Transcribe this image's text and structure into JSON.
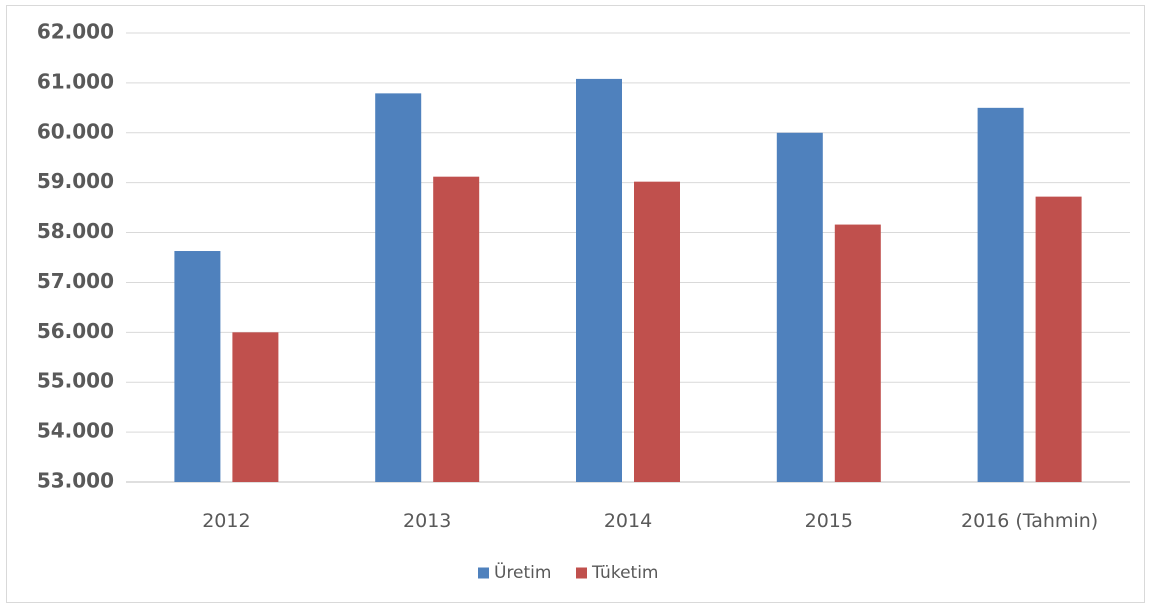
{
  "chart_data": {
    "type": "bar",
    "categories": [
      "2012",
      "2013",
      "2014",
      "2015",
      "2016 (Tahmin)"
    ],
    "series": [
      {
        "name": "Üretim",
        "color": "#4f81bd",
        "values": [
          57630,
          60790,
          61080,
          60000,
          60500
        ]
      },
      {
        "name": "Tüketim",
        "color": "#c0504d",
        "values": [
          56000,
          59120,
          59020,
          58160,
          58720
        ]
      }
    ],
    "ylim": [
      53000,
      62000
    ],
    "yticks": [
      53000,
      54000,
      55000,
      56000,
      57000,
      58000,
      59000,
      60000,
      61000,
      62000
    ],
    "ytick_labels": [
      "53.000",
      "54.000",
      "55.000",
      "56.000",
      "57.000",
      "58.000",
      "59.000",
      "60.000",
      "61.000",
      "62.000"
    ],
    "grid": true,
    "legend_position": "bottom",
    "title": "",
    "xlabel": "",
    "ylabel": ""
  }
}
